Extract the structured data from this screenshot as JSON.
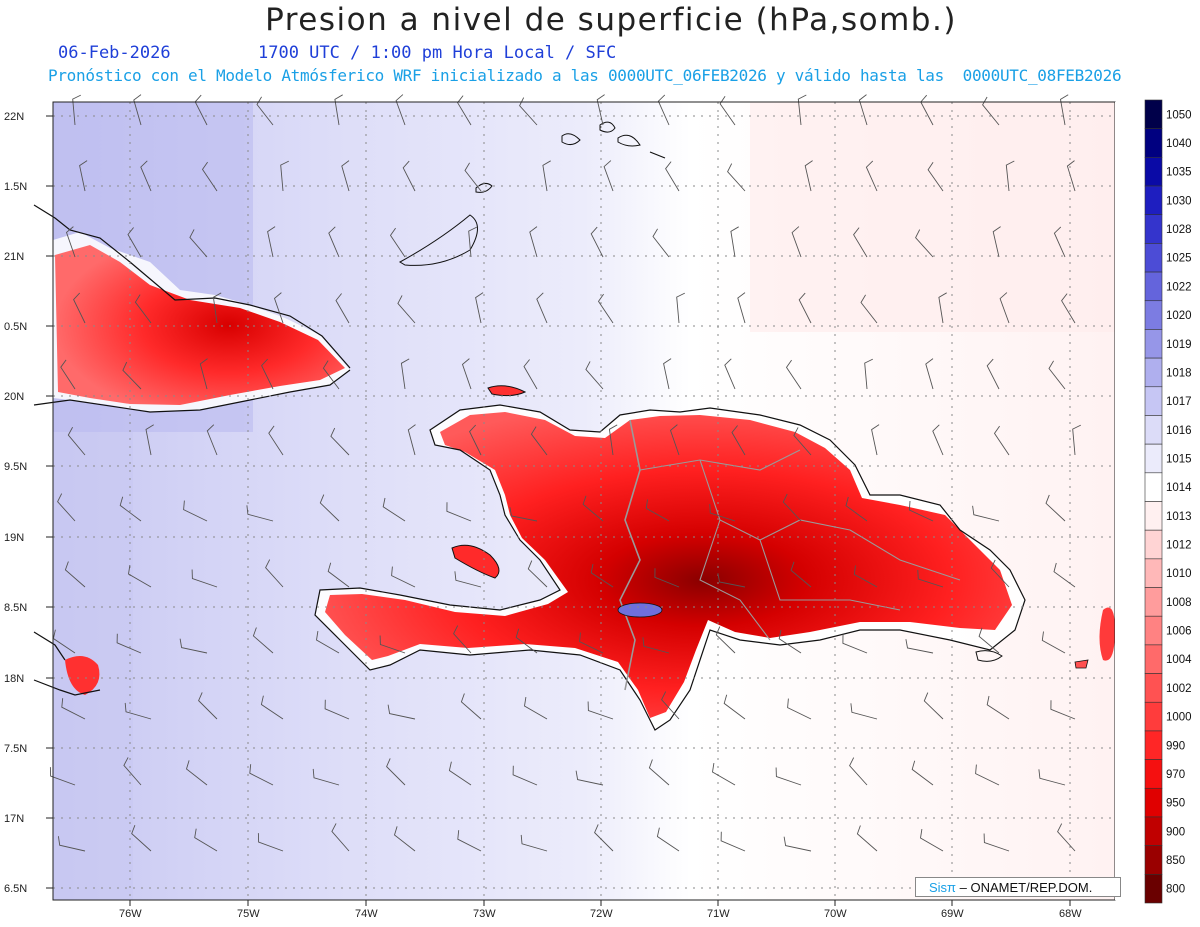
{
  "title": "Presion a nivel de superficie (hPa,somb.)",
  "subtitle": {
    "date": "06-Feb-2026",
    "time": "1700 UTC / 1:00 pm Hora Local / SFC",
    "model": "Pronóstico con el Modelo Atmósferico WRF inicializado a las 0000UTC_06FEB2026 y válido hasta las  0000UTC_08FEB2026"
  },
  "lat_labels": [
    "22N",
    "1.5N",
    "21N",
    "0.5N",
    "20N",
    "9.5N",
    "19N",
    "8.5N",
    "18N",
    "7.5N",
    "17N",
    "6.5N"
  ],
  "lon_labels": [
    "76W",
    "75W",
    "74W",
    "73W",
    "72W",
    "71W",
    "70W",
    "69W",
    "68W"
  ],
  "colorbar": {
    "levels": [
      "1050",
      "1040",
      "1035",
      "1030",
      "1028",
      "1025",
      "1022",
      "1020",
      "1019",
      "1018",
      "1017",
      "1016",
      "1015",
      "1014",
      "1013",
      "1012",
      "1010",
      "1008",
      "1006",
      "1004",
      "1002",
      "1000",
      "990",
      "970",
      "950",
      "900",
      "850",
      "800"
    ],
    "colors": [
      "#00004a",
      "#000080",
      "#0a0aa6",
      "#1e1ec0",
      "#3434cc",
      "#4c4cd6",
      "#6464dc",
      "#7c7ce2",
      "#9696e8",
      "#afafee",
      "#c6c6f4",
      "#dcdcf8",
      "#ebebfb",
      "#ffffff",
      "#fff0f0",
      "#ffd4d4",
      "#ffb8b8",
      "#ff9c9c",
      "#ff8282",
      "#ff6a6a",
      "#ff5252",
      "#ff3c3c",
      "#ff2626",
      "#f51010",
      "#e00000",
      "#c00000",
      "#9a0000",
      "#6a0000"
    ]
  },
  "credit": {
    "brand": "Sisπ",
    "text": "– ONAMET/REP.DOM."
  }
}
